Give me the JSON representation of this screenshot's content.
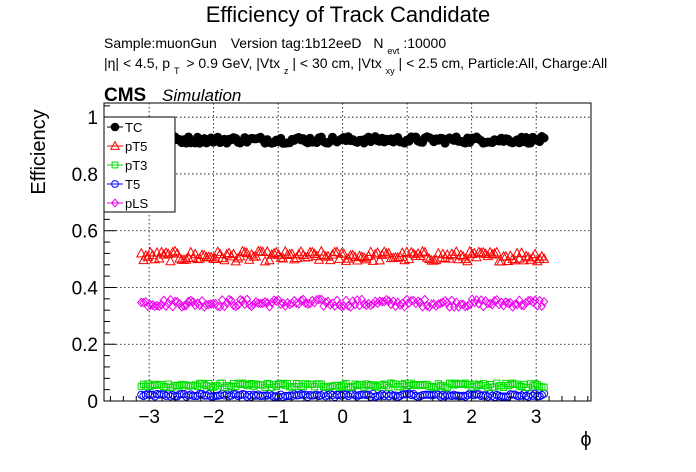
{
  "chart_data": {
    "type": "scatter",
    "title": "Efficiency of Track Candidate",
    "subtitle_line1": {
      "sample": "Sample:muonGun",
      "version": "Version tag:1b12eeD",
      "nevt_prefix": "N",
      "nevt_sub": "evt",
      "nevt_value": ":10000"
    },
    "subtitle_line2": {
      "eta_cut": "|η| < 4.5, p",
      "pt_sub": "T",
      "pt_cut": "> 0.9 GeV, |Vtx",
      "vz_sub": "z",
      "vz_cut": "| < 30 cm, |Vtx",
      "vxy_sub": "xy",
      "vxy_cut": "| < 2.5 cm, Particle:All, Charge:All"
    },
    "cms_label": "CMS",
    "cms_sublabel": "Simulation",
    "xlabel": "ϕ",
    "ylabel": "Efficiency",
    "xlim": [
      -3.7,
      3.85
    ],
    "ylim": [
      0,
      1.05
    ],
    "x_ticks": [
      -3,
      -2,
      -1,
      0,
      1,
      2,
      3
    ],
    "x_tick_labels": [
      "−3",
      "−2",
      "−1",
      "0",
      "1",
      "2",
      "3"
    ],
    "y_ticks": [
      0,
      0.2,
      0.4,
      0.6,
      0.8,
      1
    ],
    "y_tick_labels": [
      "0",
      "0.2",
      "0.4",
      "0.6",
      "0.8",
      "1"
    ],
    "grid": true,
    "legend_position": "top-left",
    "x_range": [
      -3.14,
      3.14
    ],
    "n_bins": 180,
    "series": [
      {
        "name": "TC",
        "marker": "circle-filled",
        "color": "#000000",
        "level": 0.92,
        "spread": 0.012
      },
      {
        "name": "pT5",
        "marker": "triangle-open",
        "color": "#ff0000",
        "level": 0.51,
        "spread": 0.018
      },
      {
        "name": "pT3",
        "marker": "square-open",
        "color": "#00dd00",
        "level": 0.055,
        "spread": 0.008
      },
      {
        "name": "T5",
        "marker": "circle-open",
        "color": "#0000ff",
        "level": 0.02,
        "spread": 0.006
      },
      {
        "name": "pLS",
        "marker": "diamond-open",
        "color": "#ee00ee",
        "level": 0.345,
        "spread": 0.014
      }
    ]
  }
}
